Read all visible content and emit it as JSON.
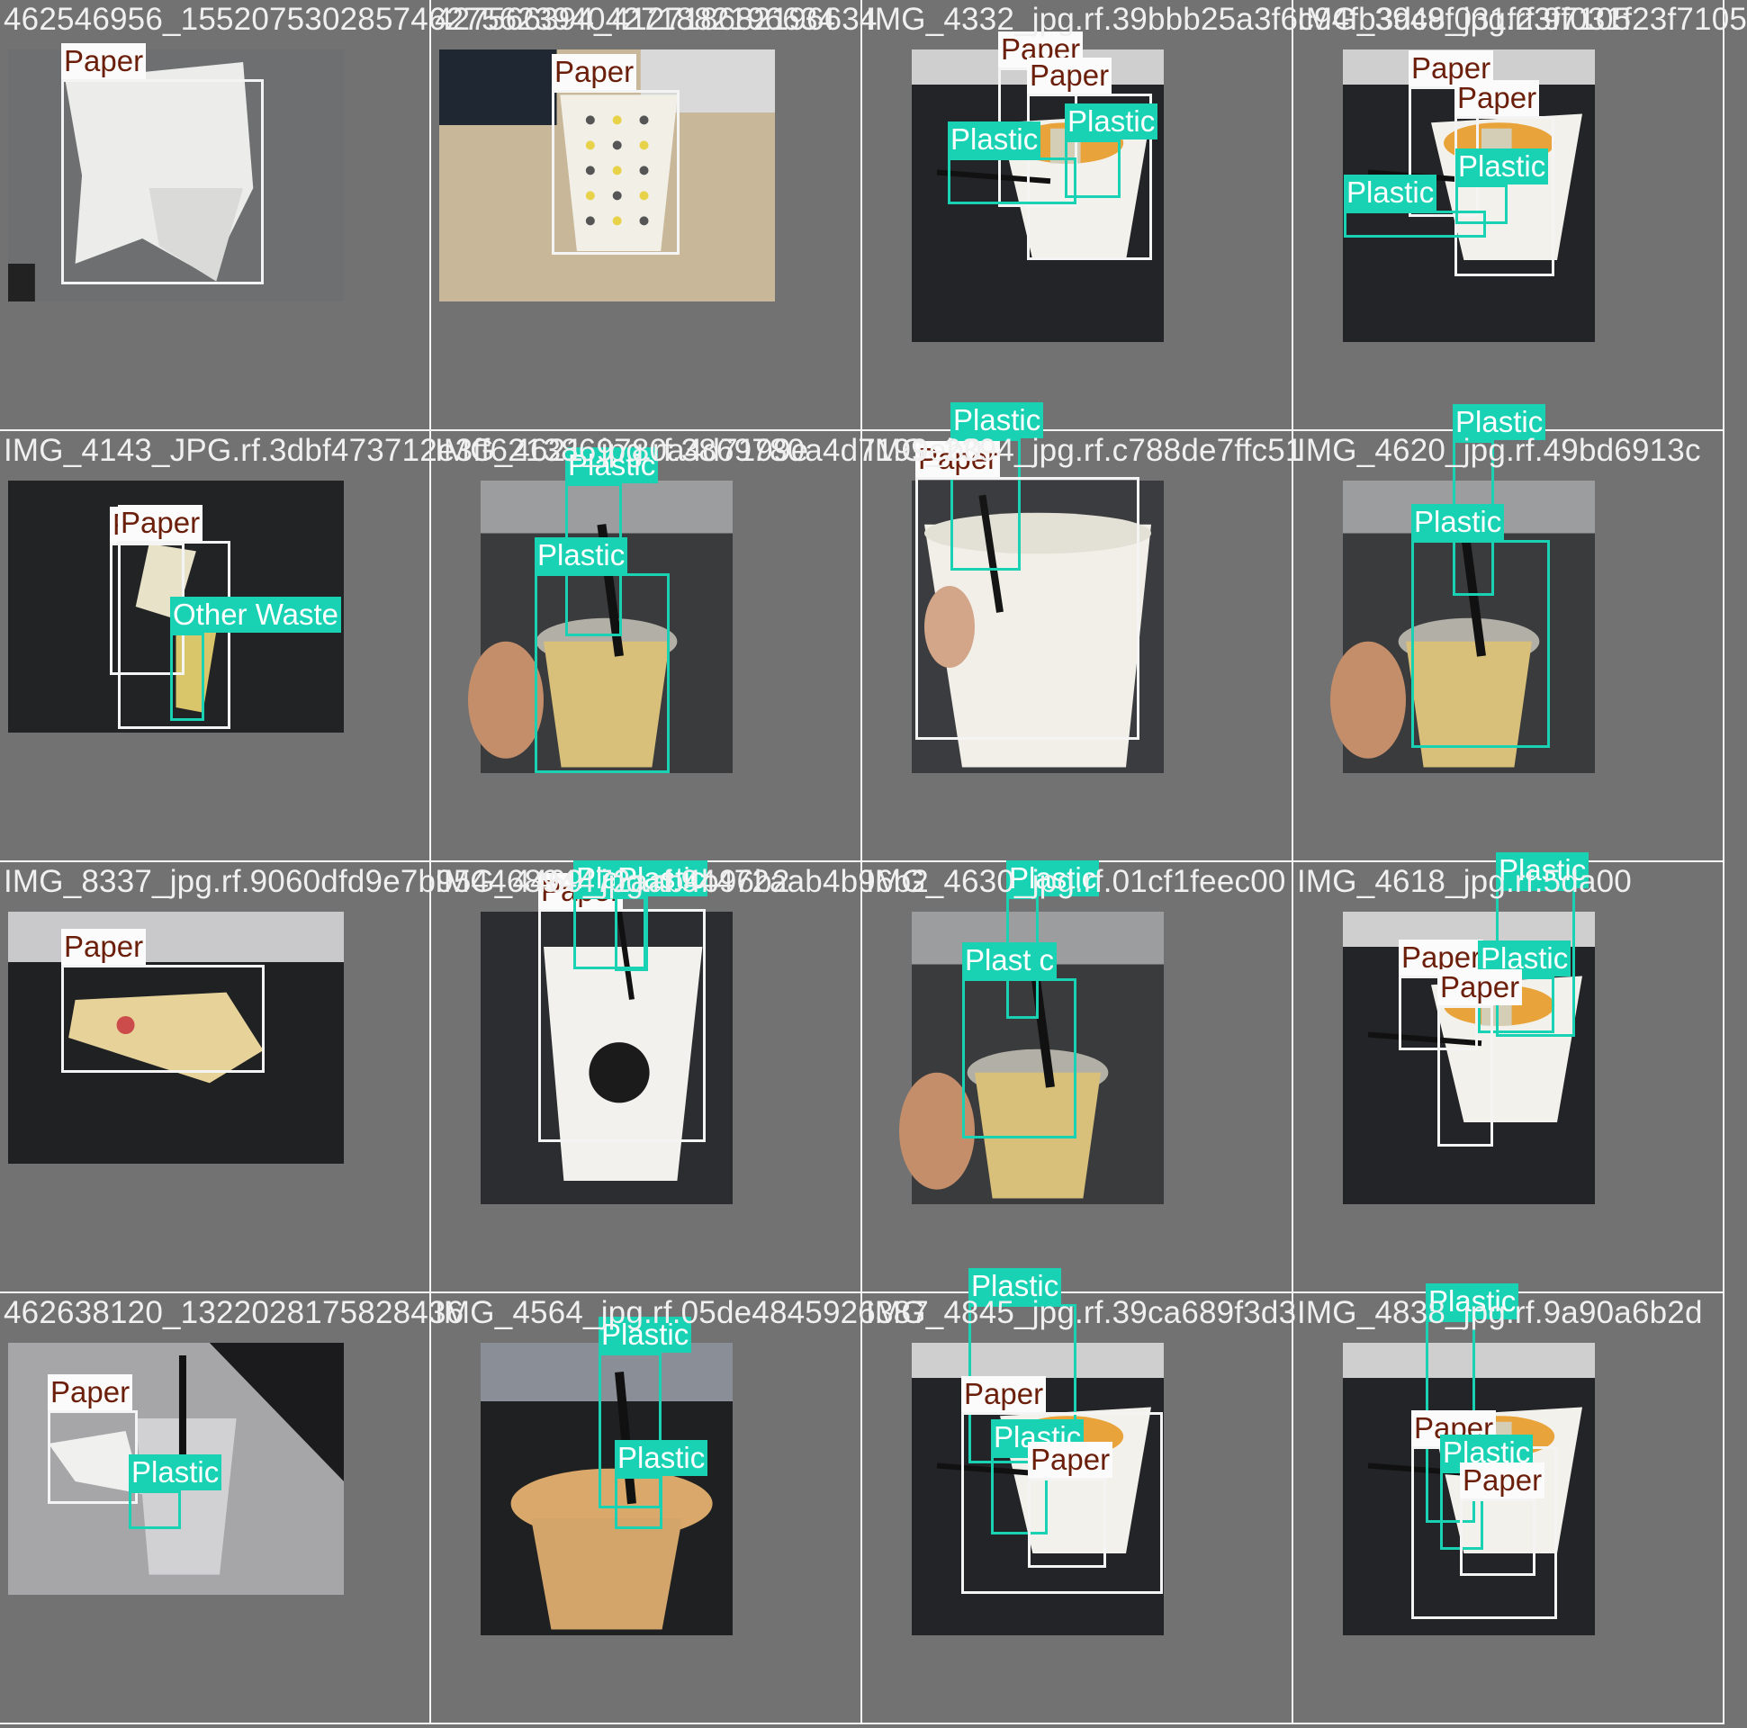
{
  "colors": {
    "background": "#727272",
    "separator": "#f4f4f4",
    "paper_box": "#f4f4f4",
    "paper_label_text": "#6b1e0a",
    "plastic_box": "#19d1b3",
    "other_waste_box": "#19d1b3"
  },
  "tiles": [
    {
      "title": "462546956_1552075302857462756239404271882196634",
      "scene": "tissue",
      "boxes": [
        {
          "label": "Paper",
          "cls": "paper"
        }
      ]
    },
    {
      "title": "427566394_412718682196634",
      "scene": "yellow-cup",
      "boxes": [
        {
          "label": "Paper",
          "cls": "paper"
        }
      ]
    },
    {
      "title": "IMG_4332_jpg.rf.39bbb25a3f6c94fb3dc9f031f23f7105",
      "scene": "cup-with-food",
      "boxes": [
        {
          "label": "Paper",
          "cls": "paper"
        },
        {
          "label": "Paper",
          "cls": "paper"
        },
        {
          "label": "Plastic",
          "cls": "plastic"
        },
        {
          "label": "Plastic",
          "cls": "plastic"
        }
      ]
    },
    {
      "title": "IMG_3948_jpg.rf.9f031f23f7105",
      "scene": "cup-with-food",
      "boxes": [
        {
          "label": "Paper",
          "cls": "paper"
        },
        {
          "label": "Paper",
          "cls": "paper"
        },
        {
          "label": "Plastic",
          "cls": "plastic"
        },
        {
          "label": "Plastic",
          "cls": "plastic"
        }
      ]
    },
    {
      "title": "IMG_4143_JPG.rf.3dbf473712e3ff6213869780a4d7199e",
      "scene": "crumpled-liner",
      "boxes": [
        {
          "label": "Paper",
          "cls": "paper"
        },
        {
          "label": "Paper",
          "cls": "paper"
        },
        {
          "label": "Other Waste",
          "cls": "other"
        }
      ]
    },
    {
      "title": "IMG_4621_jpg.rf.3869780a4d7199eb0",
      "scene": "milk-tea-hand",
      "boxes": [
        {
          "label": "Plastic",
          "cls": "plastic"
        },
        {
          "label": "Plastic",
          "cls": "plastic"
        }
      ]
    },
    {
      "title": "IMG_2394_jpg.rf.c788de7ffc51",
      "scene": "white-cup-straw",
      "boxes": [
        {
          "label": "Plastic",
          "cls": "plastic"
        },
        {
          "label": "Paper",
          "cls": "paper"
        }
      ]
    },
    {
      "title": "IMG_4620_jpg.rf.49bd6913c",
      "scene": "milk-tea-hand",
      "boxes": [
        {
          "label": "Plastic",
          "cls": "plastic"
        },
        {
          "label": "Plastic",
          "cls": "plastic"
        }
      ]
    },
    {
      "title": "IMG_8337_jpg.rf.9060dfd9e7b95446894472aab4b96b2",
      "scene": "candy-wrapper",
      "boxes": [
        {
          "label": "Paper",
          "cls": "paper"
        }
      ]
    },
    {
      "title": "IMG_4469_jpg.rf.94472aab4b96b2",
      "scene": "white-cup-logo",
      "boxes": [
        {
          "label": "Paper",
          "cls": "paper"
        },
        {
          "label": "Plastic",
          "cls": "plastic"
        },
        {
          "label": "Plastic",
          "cls": "plastic"
        }
      ]
    },
    {
      "title": "IMG_4630_jpg.rf.01cf1feec00",
      "scene": "milk-tea-hand",
      "boxes": [
        {
          "label": "Plastic",
          "cls": "plastic"
        },
        {
          "label": "Plast c",
          "cls": "plastic"
        }
      ]
    },
    {
      "title": "IMG_4618_jpg.rf.5da00",
      "scene": "cup-with-food",
      "boxes": [
        {
          "label": "Plastic",
          "cls": "plastic"
        },
        {
          "label": "Paper",
          "cls": "paper"
        },
        {
          "label": "Plastic",
          "cls": "plastic"
        },
        {
          "label": "Paper",
          "cls": "paper"
        }
      ]
    },
    {
      "title": "462638120_1322028175828436",
      "scene": "clear-cup-tissue",
      "boxes": [
        {
          "label": "Paper",
          "cls": "paper"
        },
        {
          "label": "Plastic",
          "cls": "plastic"
        }
      ]
    },
    {
      "title": "IMG_4564_jpg.rf.05de4845926387",
      "scene": "dome-cup",
      "boxes": [
        {
          "label": "Plastic",
          "cls": "plastic"
        },
        {
          "label": "Plastic",
          "cls": "plastic"
        }
      ]
    },
    {
      "title": "IMG_4845_jpg.rf.39ca689f3d3",
      "scene": "cup-with-food",
      "boxes": [
        {
          "label": "Plastic",
          "cls": "plastic"
        },
        {
          "label": "Paper",
          "cls": "paper"
        },
        {
          "label": "Plastic",
          "cls": "plastic"
        },
        {
          "label": "Paper",
          "cls": "paper"
        }
      ]
    },
    {
      "title": "IMG_4838_jpg.rf.9a90a6b2d",
      "scene": "cup-with-food",
      "boxes": [
        {
          "label": "Plastic",
          "cls": "plastic"
        },
        {
          "label": "Paper",
          "cls": "paper"
        },
        {
          "label": "Plastic",
          "cls": "plastic"
        },
        {
          "label": "Paper",
          "cls": "paper"
        }
      ]
    }
  ]
}
